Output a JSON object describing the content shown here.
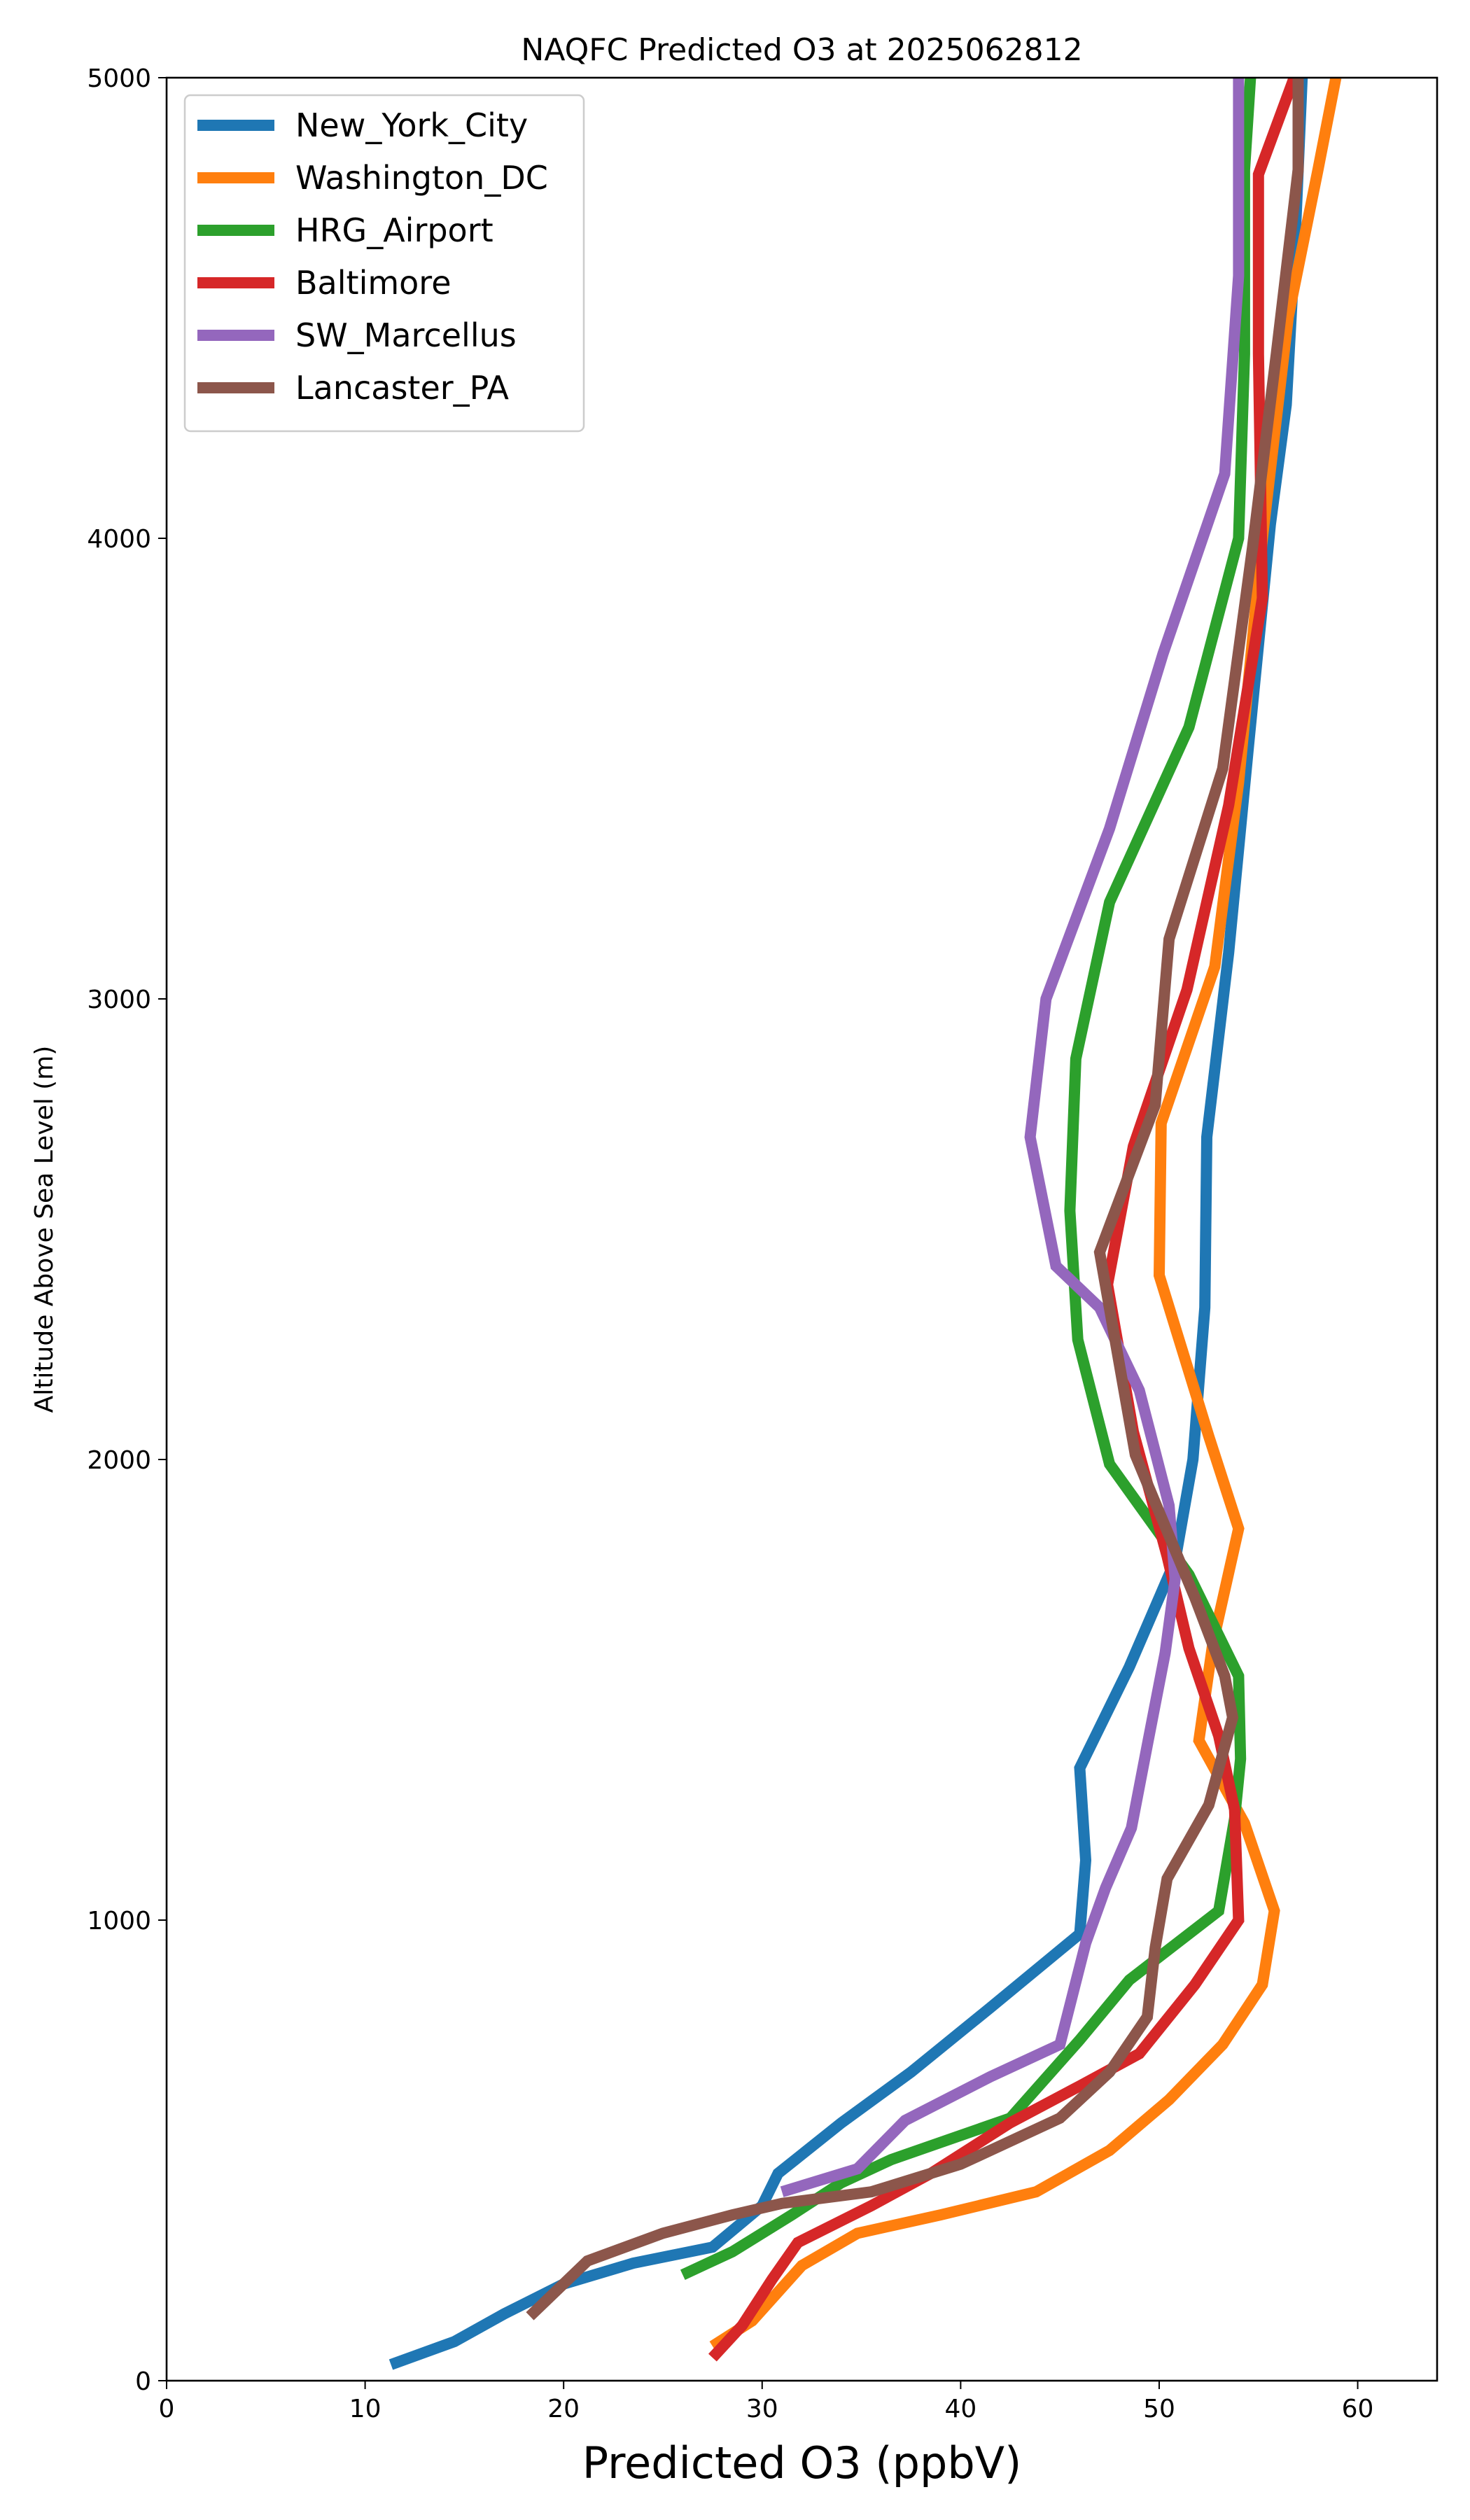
{
  "chart_data": {
    "type": "line",
    "title": "NAQFC Predicted O3 at 2025062812",
    "xlabel": "Predicted O3 (ppbV)",
    "ylabel": "Altitude Above Sea Level (m)",
    "xlim": [
      0,
      64
    ],
    "ylim": [
      0,
      5000
    ],
    "xticks": [
      0,
      10,
      20,
      30,
      40,
      50,
      60
    ],
    "yticks": [
      0,
      1000,
      2000,
      3000,
      4000,
      5000
    ],
    "grid": false,
    "legend_position": "top-left",
    "series": [
      {
        "name": "New_York_City",
        "color": "#1f77b4",
        "points": [
          [
            11.3,
            35
          ],
          [
            14.5,
            85
          ],
          [
            17,
            145
          ],
          [
            20,
            210
          ],
          [
            23.5,
            255
          ],
          [
            27.5,
            290
          ],
          [
            30,
            380
          ],
          [
            30.8,
            450
          ],
          [
            34,
            560
          ],
          [
            37.5,
            670
          ],
          [
            41.5,
            810
          ],
          [
            46,
            970
          ],
          [
            46.3,
            1130
          ],
          [
            46,
            1330
          ],
          [
            48.5,
            1550
          ],
          [
            50.8,
            1780
          ],
          [
            51.7,
            2000
          ],
          [
            52.3,
            2330
          ],
          [
            52.4,
            2700
          ],
          [
            53.5,
            3100
          ],
          [
            54.5,
            3550
          ],
          [
            55.6,
            4030
          ],
          [
            56.4,
            4290
          ],
          [
            56.8,
            4600
          ],
          [
            57.2,
            5000
          ]
        ]
      },
      {
        "name": "Washington_DC",
        "color": "#ff7f0e",
        "points": [
          [
            27.5,
            75
          ],
          [
            29.5,
            130
          ],
          [
            32,
            250
          ],
          [
            34.8,
            320
          ],
          [
            39,
            360
          ],
          [
            43.8,
            410
          ],
          [
            47.5,
            500
          ],
          [
            50.5,
            610
          ],
          [
            53.2,
            730
          ],
          [
            55.2,
            860
          ],
          [
            55.8,
            1020
          ],
          [
            54.3,
            1210
          ],
          [
            52,
            1390
          ],
          [
            52.7,
            1600
          ],
          [
            54,
            1850
          ],
          [
            52.5,
            2050
          ],
          [
            50,
            2400
          ],
          [
            50.1,
            2730
          ],
          [
            52.8,
            3070
          ],
          [
            54,
            3470
          ],
          [
            55.2,
            4000
          ],
          [
            56.5,
            4480
          ],
          [
            58,
            4800
          ],
          [
            58.9,
            5000
          ]
        ]
      },
      {
        "name": "HRG_Airport",
        "color": "#2ca02c",
        "points": [
          [
            26,
            230
          ],
          [
            28.5,
            280
          ],
          [
            31.5,
            360
          ],
          [
            34,
            430
          ],
          [
            36.5,
            480
          ],
          [
            42.5,
            570
          ],
          [
            46,
            740
          ],
          [
            48.5,
            870
          ],
          [
            53,
            1020
          ],
          [
            53.8,
            1220
          ],
          [
            54.1,
            1350
          ],
          [
            54,
            1530
          ],
          [
            51.5,
            1750
          ],
          [
            47.5,
            1990
          ],
          [
            45.9,
            2260
          ],
          [
            45.5,
            2540
          ],
          [
            45.8,
            2870
          ],
          [
            47.5,
            3210
          ],
          [
            51.5,
            3590
          ],
          [
            54,
            4000
          ],
          [
            54.3,
            4400
          ],
          [
            54.3,
            4800
          ],
          [
            54.6,
            5000
          ]
        ]
      },
      {
        "name": "Baltimore",
        "color": "#d62728",
        "points": [
          [
            27.5,
            50
          ],
          [
            29,
            120
          ],
          [
            30.5,
            220
          ],
          [
            31.8,
            300
          ],
          [
            35.5,
            380
          ],
          [
            38.5,
            450
          ],
          [
            42.5,
            560
          ],
          [
            46,
            640
          ],
          [
            49,
            710
          ],
          [
            51.8,
            860
          ],
          [
            54,
            1000
          ],
          [
            53.8,
            1240
          ],
          [
            53,
            1400
          ],
          [
            51.5,
            1590
          ],
          [
            50.4,
            1790
          ],
          [
            48.7,
            2060
          ],
          [
            47.4,
            2380
          ],
          [
            48.7,
            2680
          ],
          [
            51.4,
            3020
          ],
          [
            53.5,
            3420
          ],
          [
            55.2,
            3870
          ],
          [
            55,
            4400
          ],
          [
            55,
            4790
          ],
          [
            56.8,
            5000
          ]
        ]
      },
      {
        "name": "SW_Marcellus",
        "color": "#9467bd",
        "points": [
          [
            31,
            410
          ],
          [
            34.8,
            460
          ],
          [
            37.2,
            565
          ],
          [
            41.5,
            660
          ],
          [
            45,
            730
          ],
          [
            46.3,
            950
          ],
          [
            47.3,
            1070
          ],
          [
            48.6,
            1200
          ],
          [
            49.4,
            1380
          ],
          [
            50.3,
            1580
          ],
          [
            50.8,
            1740
          ],
          [
            50.5,
            1900
          ],
          [
            49,
            2150
          ],
          [
            47,
            2330
          ],
          [
            44.8,
            2420
          ],
          [
            43.5,
            2700
          ],
          [
            44.3,
            3000
          ],
          [
            47.5,
            3370
          ],
          [
            50.2,
            3750
          ],
          [
            53.3,
            4140
          ],
          [
            54,
            4570
          ],
          [
            54,
            5000
          ]
        ]
      },
      {
        "name": "Lancaster_PA",
        "color": "#8c564b",
        "points": [
          [
            18.3,
            140
          ],
          [
            21.2,
            260
          ],
          [
            25,
            320
          ],
          [
            28.5,
            360
          ],
          [
            31,
            385
          ],
          [
            35.5,
            410
          ],
          [
            40,
            470
          ],
          [
            45,
            570
          ],
          [
            47.5,
            670
          ],
          [
            49.4,
            790
          ],
          [
            49.8,
            940
          ],
          [
            50.4,
            1090
          ],
          [
            52.5,
            1250
          ],
          [
            53.7,
            1440
          ],
          [
            53.3,
            1530
          ],
          [
            51.8,
            1700
          ],
          [
            48.8,
            2010
          ],
          [
            47,
            2450
          ],
          [
            49.8,
            2770
          ],
          [
            50.5,
            3130
          ],
          [
            53.2,
            3500
          ],
          [
            54.7,
            3980
          ],
          [
            55.9,
            4400
          ],
          [
            57,
            4800
          ],
          [
            57,
            5000
          ]
        ]
      }
    ]
  }
}
